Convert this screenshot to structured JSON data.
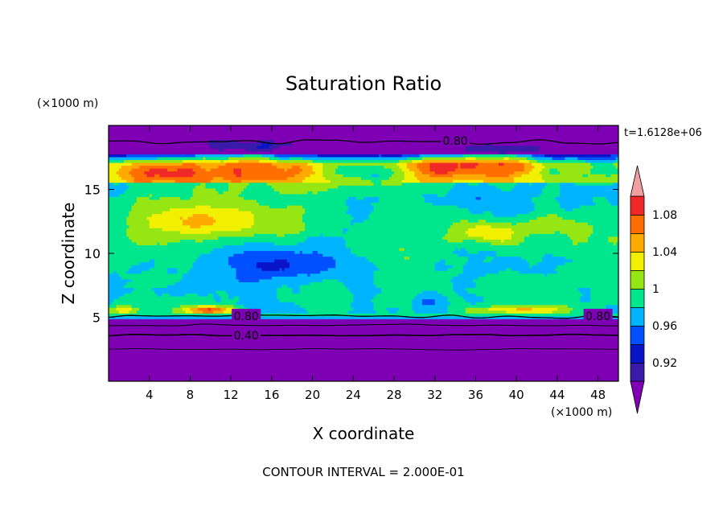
{
  "chart_data": {
    "type": "heatmap",
    "title": "Saturation Ratio",
    "xlabel": "X coordinate",
    "ylabel": "Z coordinate",
    "x_unit": "(×1000 m)",
    "y_unit": "(×1000 m)",
    "time_label": "t=1.6128e+06",
    "footer": "CONTOUR INTERVAL = 2.000E-01",
    "xlim": [
      0,
      50
    ],
    "ylim": [
      0,
      20
    ],
    "x_ticks": [
      4,
      8,
      12,
      16,
      20,
      24,
      28,
      32,
      36,
      40,
      44,
      48
    ],
    "y_ticks": [
      5,
      10,
      15
    ],
    "colorbar": {
      "boundaries": [
        0.9,
        0.92,
        0.94,
        0.96,
        0.98,
        1.0,
        1.02,
        1.04,
        1.06,
        1.08,
        1.1
      ],
      "tick_labels": [
        "0.92",
        "0.96",
        "1",
        "1.04",
        "1.08"
      ],
      "colors": [
        "#3a1aa8",
        "#0a14c8",
        "#0050ff",
        "#00b4ff",
        "#00e68c",
        "#96e614",
        "#f0f000",
        "#ffaa00",
        "#ff6e00",
        "#f02828",
        "#f0a0a0",
        "#7f00b4"
      ],
      "extend": "both"
    },
    "contour_labels": [
      {
        "x": 34,
        "z": 18.8,
        "text": "0.80"
      },
      {
        "x": 13.5,
        "z": 5.1,
        "text": "0.80"
      },
      {
        "x": 13.5,
        "z": 3.6,
        "text": "0.40"
      },
      {
        "x": 48,
        "z": 5.1,
        "text": "0.80"
      }
    ]
  }
}
